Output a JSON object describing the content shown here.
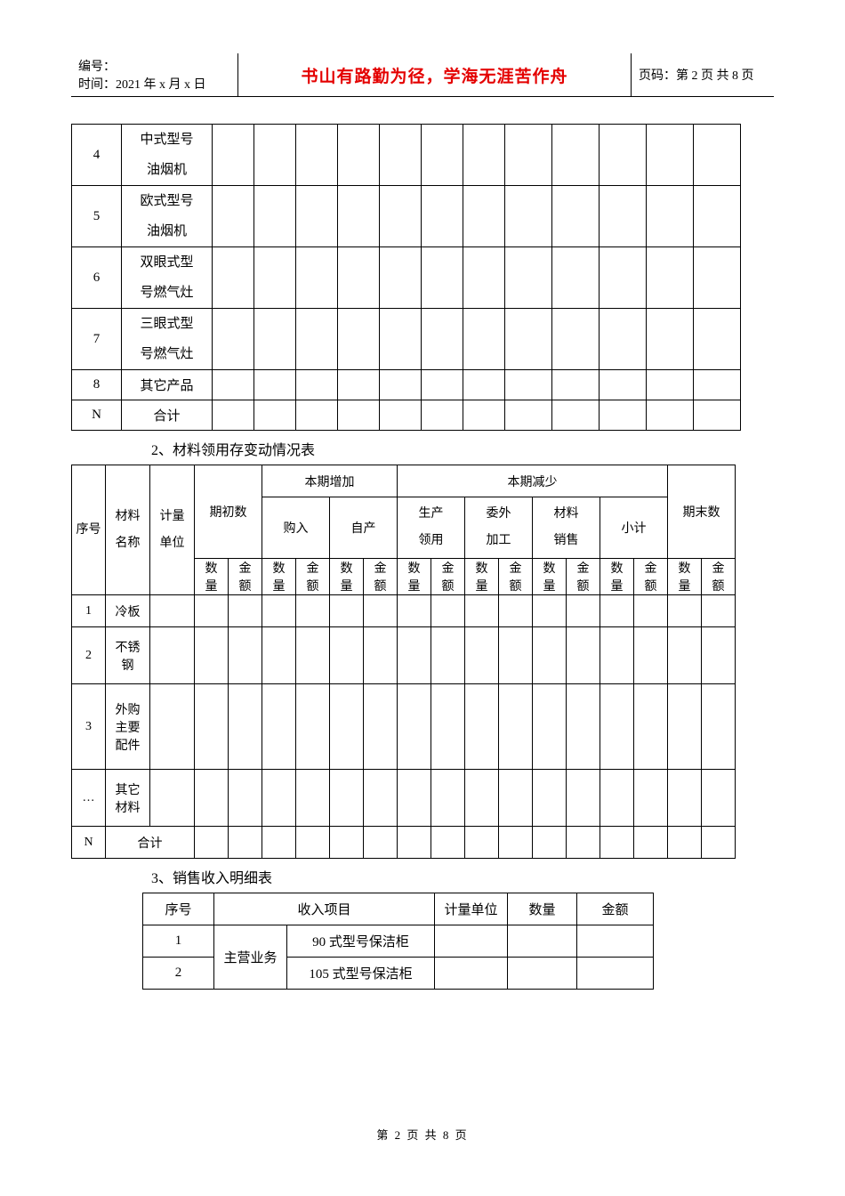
{
  "header": {
    "id_label": "编号：",
    "time_label": "时间：2021 年 x 月 x 日",
    "quote": "书山有路勤为径，学海无涯苦作舟",
    "page_label": "页码：第 2 页  共 8 页"
  },
  "table1": {
    "rows": [
      {
        "num": "4",
        "name": "中式型号\n油烟机"
      },
      {
        "num": "5",
        "name": "欧式型号\n油烟机"
      },
      {
        "num": "6",
        "name": "双眼式型\n号燃气灶"
      },
      {
        "num": "7",
        "name": "三眼式型\n号燃气灶"
      },
      {
        "num": "8",
        "name": "其它产品"
      },
      {
        "num": "N",
        "name": "合计"
      }
    ]
  },
  "section2_title": "2、材料领用存变动情况表",
  "table2": {
    "head": {
      "seq": "序号",
      "name": "材料名称",
      "unit": "计量单位",
      "begin": "期初数",
      "inc": "本期增加",
      "dec": "本期减少",
      "end": "期末数",
      "buy": "购入",
      "self": "自产",
      "prod": "生产领用",
      "out": "委外加工",
      "sale": "材料销售",
      "subtotal": "小计",
      "qty": "数量",
      "amt": "金额"
    },
    "rows": [
      {
        "num": "1",
        "name": "冷板"
      },
      {
        "num": "2",
        "name": "不锈\n钢"
      },
      {
        "num": "3",
        "name": "外购\n主要\n配件"
      },
      {
        "num": "…",
        "name": "其它\n材料"
      },
      {
        "num": "N",
        "name": "合计",
        "merged": true
      }
    ]
  },
  "section3_title": "3、销售收入明细表",
  "table3": {
    "head": {
      "seq": "序号",
      "item": "收入项目",
      "unit": "计量单位",
      "qty": "数量",
      "amt": "金额"
    },
    "main_biz": "主营业务",
    "rows": [
      {
        "num": "1",
        "name": "90 式型号保洁柜"
      },
      {
        "num": "2",
        "name": "105 式型号保洁柜"
      }
    ]
  },
  "footer": "第  2  页  共  8  页"
}
